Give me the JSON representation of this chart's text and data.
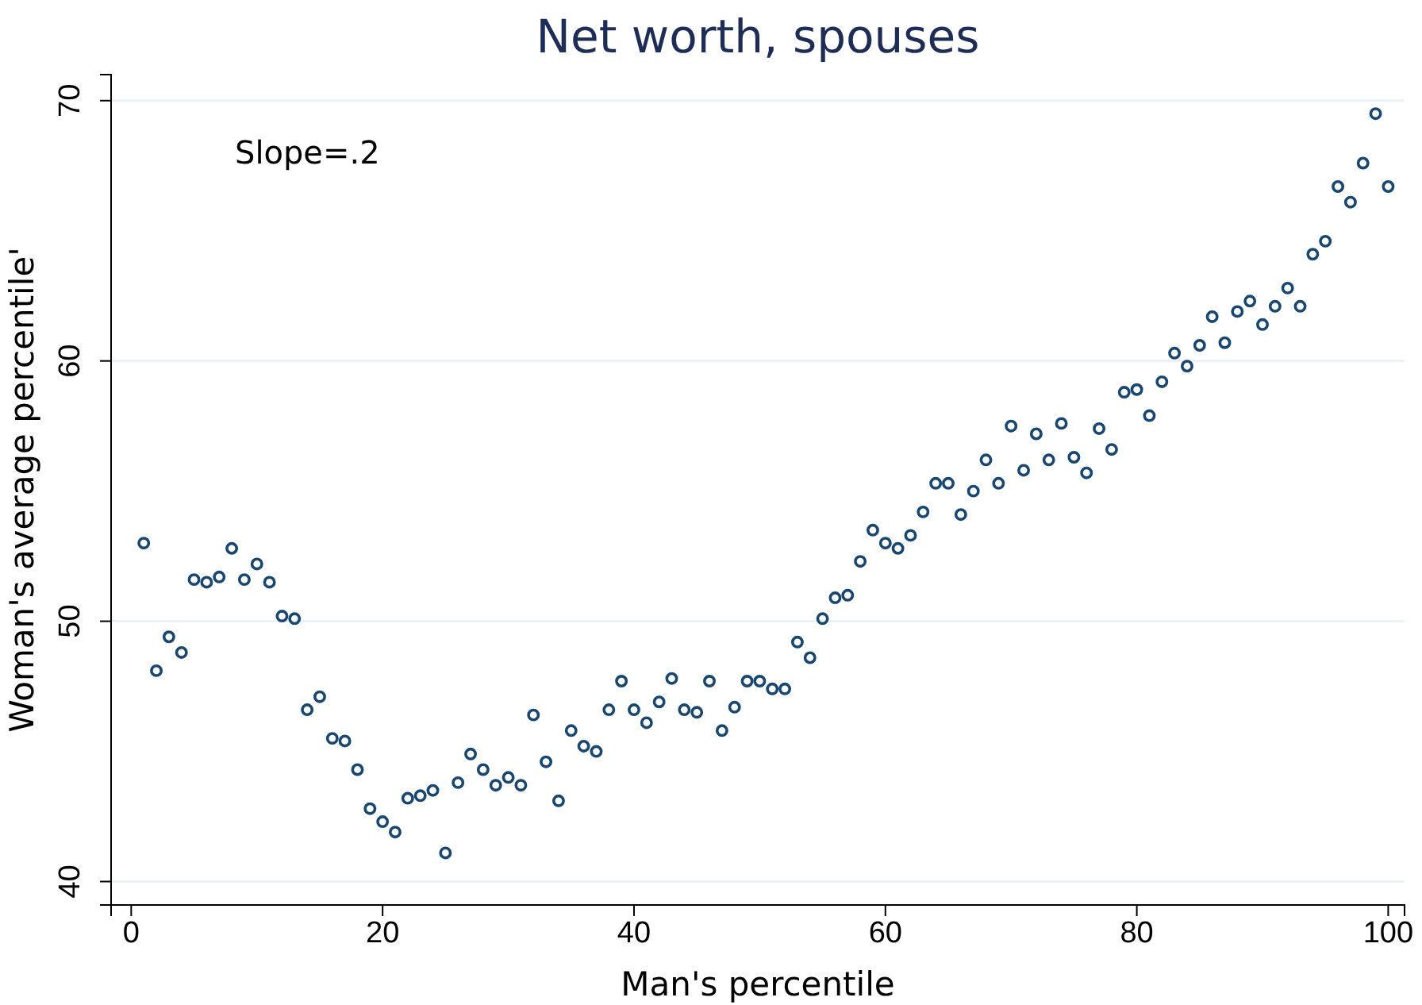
{
  "chart_data": {
    "type": "scatter",
    "title": "Net worth, spouses",
    "xlabel": "Man's percentile",
    "ylabel": "Woman's average percentile'",
    "annotations": [
      "Slope=.2"
    ],
    "x": [
      1,
      2,
      3,
      4,
      5,
      6,
      7,
      8,
      9,
      10,
      11,
      12,
      13,
      14,
      15,
      16,
      17,
      18,
      19,
      20,
      21,
      22,
      23,
      24,
      25,
      26,
      27,
      28,
      29,
      30,
      31,
      32,
      33,
      34,
      35,
      36,
      37,
      38,
      39,
      40,
      41,
      42,
      43,
      44,
      45,
      46,
      47,
      48,
      49,
      50,
      51,
      52,
      53,
      54,
      55,
      56,
      57,
      58,
      59,
      60,
      61,
      62,
      63,
      64,
      65,
      66,
      67,
      68,
      69,
      70,
      71,
      72,
      73,
      74,
      75,
      76,
      77,
      78,
      79,
      80,
      81,
      82,
      83,
      84,
      85,
      86,
      87,
      88,
      89,
      90,
      91,
      92,
      93,
      94,
      95,
      96,
      97,
      98,
      99,
      100
    ],
    "series": [
      {
        "color": "#1a476f",
        "values": [
          53.0,
          48.1,
          49.4,
          48.8,
          51.6,
          51.5,
          51.7,
          52.8,
          51.6,
          52.2,
          51.5,
          50.2,
          50.1,
          46.6,
          47.1,
          45.5,
          45.4,
          44.3,
          42.8,
          42.3,
          41.9,
          43.2,
          43.3,
          43.5,
          41.1,
          43.8,
          44.9,
          44.3,
          43.7,
          44.0,
          43.7,
          46.4,
          44.6,
          43.1,
          45.8,
          45.2,
          45.0,
          46.6,
          47.7,
          46.6,
          46.1,
          46.9,
          47.8,
          46.6,
          46.5,
          47.7,
          45.8,
          46.7,
          47.7,
          47.7,
          47.4,
          47.4,
          49.2,
          48.6,
          50.1,
          50.9,
          51.0,
          52.3,
          53.5,
          53.0,
          52.8,
          53.3,
          54.2,
          55.3,
          55.3,
          54.1,
          55.0,
          56.2,
          55.3,
          57.5,
          55.8,
          57.2,
          56.2,
          57.6,
          56.3,
          55.7,
          57.4,
          56.6,
          58.8,
          58.9,
          57.9,
          59.2,
          60.3,
          59.8,
          60.6,
          61.7,
          60.7,
          61.9,
          62.3,
          61.4,
          62.1,
          62.8,
          62.1,
          64.1,
          64.6,
          66.7,
          66.1,
          67.6,
          69.5,
          66.7
        ]
      }
    ],
    "xlim": [
      -1.6,
      101.3
    ],
    "xticks": [
      0,
      20,
      40,
      60,
      80,
      100
    ],
    "ylim": [
      39.1,
      71.0
    ],
    "yticks": [
      40,
      50,
      60,
      70
    ],
    "grid": "y",
    "marker": "circle"
  }
}
